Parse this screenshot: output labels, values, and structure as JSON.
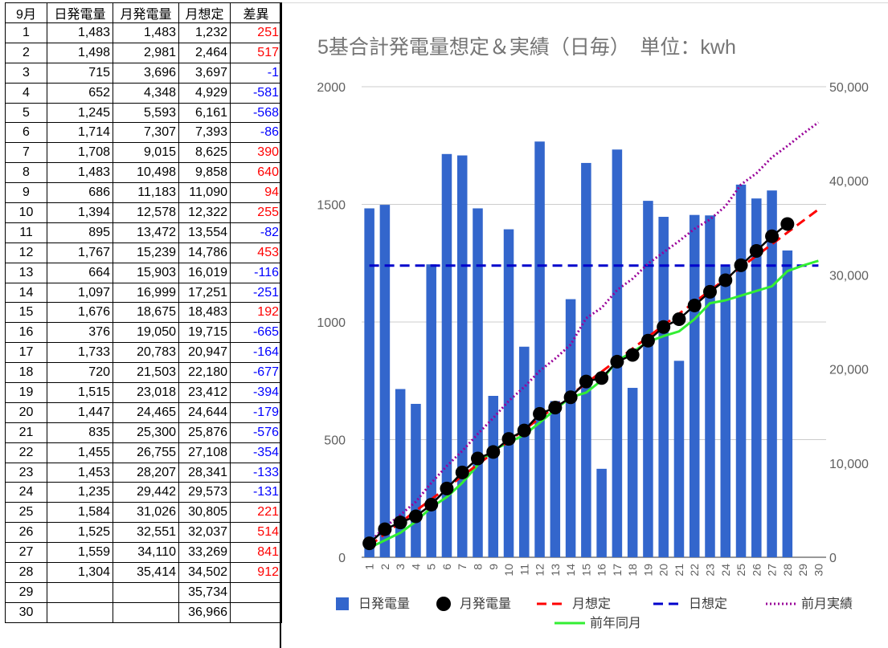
{
  "table": {
    "headers": [
      "9月",
      "日発電量",
      "月発電量",
      "月想定",
      "差異"
    ],
    "rows": [
      [
        "1",
        "1,483",
        "1,483",
        "1,232",
        "251"
      ],
      [
        "2",
        "1,498",
        "2,981",
        "2,464",
        "517"
      ],
      [
        "3",
        "715",
        "3,696",
        "3,697",
        "-1"
      ],
      [
        "4",
        "652",
        "4,348",
        "4,929",
        "-581"
      ],
      [
        "5",
        "1,245",
        "5,593",
        "6,161",
        "-568"
      ],
      [
        "6",
        "1,714",
        "7,307",
        "7,393",
        "-86"
      ],
      [
        "7",
        "1,708",
        "9,015",
        "8,625",
        "390"
      ],
      [
        "8",
        "1,483",
        "10,498",
        "9,858",
        "640"
      ],
      [
        "9",
        "686",
        "11,183",
        "11,090",
        "94"
      ],
      [
        "10",
        "1,394",
        "12,578",
        "12,322",
        "255"
      ],
      [
        "11",
        "895",
        "13,472",
        "13,554",
        "-82"
      ],
      [
        "12",
        "1,767",
        "15,239",
        "14,786",
        "453"
      ],
      [
        "13",
        "664",
        "15,903",
        "16,019",
        "-116"
      ],
      [
        "14",
        "1,097",
        "16,999",
        "17,251",
        "-251"
      ],
      [
        "15",
        "1,676",
        "18,675",
        "18,483",
        "192"
      ],
      [
        "16",
        "376",
        "19,050",
        "19,715",
        "-665"
      ],
      [
        "17",
        "1,733",
        "20,783",
        "20,947",
        "-164"
      ],
      [
        "18",
        "720",
        "21,503",
        "22,180",
        "-677"
      ],
      [
        "19",
        "1,515",
        "23,018",
        "23,412",
        "-394"
      ],
      [
        "20",
        "1,447",
        "24,465",
        "24,644",
        "-179"
      ],
      [
        "21",
        "835",
        "25,300",
        "25,876",
        "-576"
      ],
      [
        "22",
        "1,455",
        "26,755",
        "27,108",
        "-354"
      ],
      [
        "23",
        "1,453",
        "28,207",
        "28,341",
        "-133"
      ],
      [
        "24",
        "1,235",
        "29,442",
        "29,573",
        "-131"
      ],
      [
        "25",
        "1,584",
        "31,026",
        "30,805",
        "221"
      ],
      [
        "26",
        "1,525",
        "32,551",
        "32,037",
        "514"
      ],
      [
        "27",
        "1,559",
        "34,110",
        "33,269",
        "841"
      ],
      [
        "28",
        "1,304",
        "35,414",
        "34,502",
        "912"
      ],
      [
        "29",
        "",
        "",
        "35,734",
        ""
      ],
      [
        "30",
        "",
        "",
        "36,966",
        ""
      ]
    ]
  },
  "colors": {
    "positive_diff": "#ff0000",
    "negative_diff": "#0000ff"
  },
  "chart_data": {
    "type": "bar",
    "title": "5基合計発電量想定＆実績（日毎）　単位：kwh",
    "categories": [
      "1",
      "2",
      "3",
      "4",
      "5",
      "6",
      "7",
      "8",
      "9",
      "10",
      "11",
      "12",
      "13",
      "14",
      "15",
      "16",
      "17",
      "18",
      "19",
      "20",
      "21",
      "22",
      "23",
      "24",
      "25",
      "26",
      "27",
      "28",
      "29",
      "30"
    ],
    "y_left": {
      "range": [
        0,
        2000
      ],
      "ticks": [
        "0",
        "500",
        "1000",
        "1500",
        "2000"
      ]
    },
    "y_right": {
      "range": [
        0,
        50000
      ],
      "ticks": [
        "0",
        "10,000",
        "20,000",
        "30,000",
        "40,000",
        "50,000"
      ]
    },
    "grid": true,
    "legend_position": "bottom",
    "series": [
      {
        "name": "日発電量",
        "type": "bar",
        "axis": "left",
        "color": "#3366cc",
        "values": [
          1483,
          1498,
          715,
          652,
          1245,
          1714,
          1708,
          1483,
          686,
          1394,
          895,
          1767,
          664,
          1097,
          1676,
          376,
          1733,
          720,
          1515,
          1447,
          835,
          1455,
          1453,
          1235,
          1584,
          1525,
          1559,
          1304,
          null,
          null
        ]
      },
      {
        "name": "月発電量",
        "type": "line",
        "style": "solid-markers",
        "axis": "right",
        "color": "#000000",
        "values": [
          1483,
          2981,
          3696,
          4348,
          5593,
          7307,
          9015,
          10498,
          11183,
          12578,
          13472,
          15239,
          15903,
          16999,
          18675,
          19050,
          20783,
          21503,
          23018,
          24465,
          25300,
          26755,
          28207,
          29442,
          31026,
          32551,
          34110,
          35414,
          null,
          null
        ]
      },
      {
        "name": "月想定",
        "type": "line",
        "style": "dashed",
        "axis": "right",
        "color": "#ff0000",
        "values": [
          1232,
          2464,
          3697,
          4929,
          6161,
          7393,
          8625,
          9858,
          11090,
          12322,
          13554,
          14786,
          16019,
          17251,
          18483,
          19715,
          20947,
          22180,
          23412,
          24644,
          25876,
          27108,
          28341,
          29573,
          30805,
          32037,
          33269,
          34502,
          35734,
          36966
        ]
      },
      {
        "name": "日想定",
        "type": "line",
        "style": "dashed",
        "axis": "right",
        "color": "#0000cc",
        "values": [
          31000,
          31000,
          31000,
          31000,
          31000,
          31000,
          31000,
          31000,
          31000,
          31000,
          31000,
          31000,
          31000,
          31000,
          31000,
          31000,
          31000,
          31000,
          31000,
          31000,
          31000,
          31000,
          31000,
          31000,
          31000,
          31000,
          31000,
          31000,
          31000,
          31000
        ]
      },
      {
        "name": "前月実績",
        "type": "line",
        "style": "dotted",
        "axis": "right",
        "color": "#990099",
        "values": [
          1600,
          3200,
          4500,
          5900,
          7900,
          9700,
          11300,
          13100,
          14800,
          16600,
          18100,
          19800,
          21100,
          22600,
          25400,
          26500,
          28400,
          29600,
          31200,
          32400,
          33600,
          34900,
          35900,
          37300,
          39600,
          40800,
          42500,
          43700,
          45000,
          46200
        ]
      },
      {
        "name": "前年同月",
        "type": "line",
        "style": "solid",
        "axis": "right",
        "color": "#33ee33",
        "values": [
          1000,
          1800,
          2600,
          3800,
          5300,
          6400,
          7900,
          9800,
          11400,
          12200,
          13000,
          14300,
          15700,
          17000,
          17500,
          18800,
          20900,
          21800,
          22900,
          23500,
          24000,
          25300,
          27000,
          27300,
          27800,
          28300,
          28800,
          30400,
          31000,
          31500
        ]
      }
    ]
  }
}
